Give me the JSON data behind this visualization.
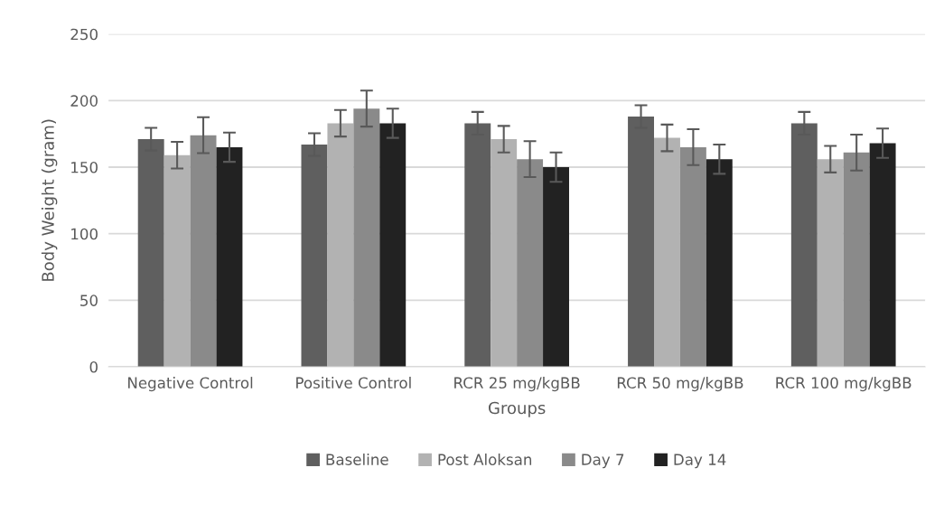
{
  "chart_data": {
    "type": "bar",
    "xlabel": "Groups",
    "ylabel": "Body Weight (gram)",
    "categories": [
      "Negative Control",
      "Positive Control",
      "RCR 25 mg/kgBB",
      "RCR 50 mg/kgBB",
      "RCR 100 mg/kgBB"
    ],
    "series": [
      {
        "name": "Baseline",
        "color": "#5f5f5f",
        "values": [
          171,
          167,
          183,
          188,
          183
        ],
        "errors": [
          8.5,
          8.5,
          8.5,
          8.5,
          8.5
        ]
      },
      {
        "name": "Post Aloksan",
        "color": "#b2b2b2",
        "values": [
          159,
          183,
          171,
          172,
          156
        ],
        "errors": [
          10,
          10,
          10,
          10,
          10
        ]
      },
      {
        "name": "Day 7",
        "color": "#8a8a8a",
        "values": [
          174,
          194,
          156,
          165,
          161
        ],
        "errors": [
          13.5,
          13.5,
          13.5,
          13.5,
          13.5
        ]
      },
      {
        "name": "Day 14",
        "color": "#222222",
        "values": [
          165,
          183,
          150,
          156,
          168
        ],
        "errors": [
          11,
          11,
          11,
          11,
          11
        ]
      }
    ],
    "ylim": [
      0,
      250
    ],
    "yticks": [
      0,
      50,
      100,
      150,
      200,
      250
    ],
    "grid": "y",
    "legend": "bottom"
  }
}
